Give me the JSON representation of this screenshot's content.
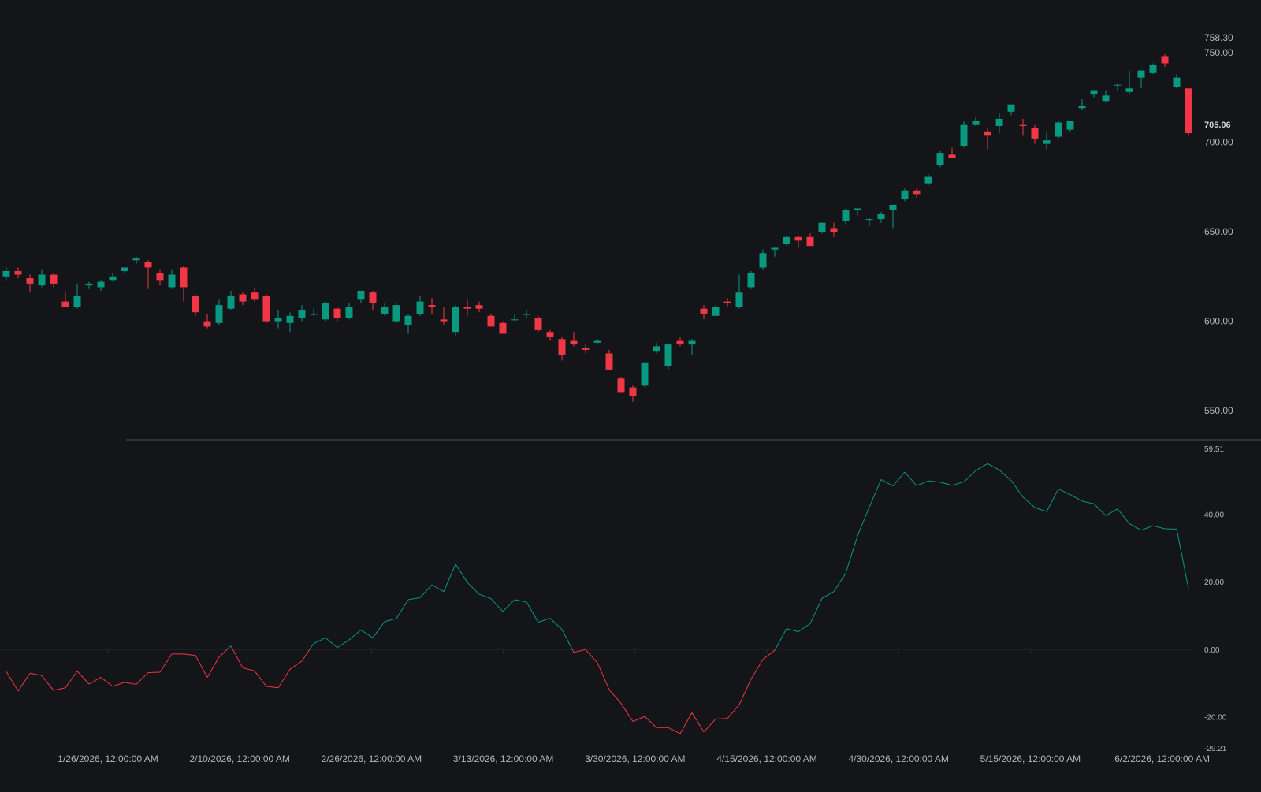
{
  "theme": {
    "background": "#131519",
    "up_color": "#089981",
    "down_color": "#f23645",
    "axis_text_color": "#b2b5be",
    "last_price_text_color": "#d1d4dc",
    "separator_color": "#3a3e48",
    "zero_line_color": "#2a2e39"
  },
  "chart_data": [
    {
      "type": "candlestick",
      "ylim": [
        539.5,
        758.3
      ],
      "y_ticks": [
        "550.00",
        "600.00",
        "650.00",
        "700.00",
        "750.00"
      ],
      "max_label": "758.30",
      "last_price_label": "705.06",
      "grid": false,
      "candles": [
        [
          625,
          630,
          623,
          628
        ],
        [
          628,
          630,
          624,
          626
        ],
        [
          624,
          626,
          616,
          621
        ],
        [
          620,
          629,
          619,
          626
        ],
        [
          626,
          627,
          619,
          621
        ],
        [
          611,
          616,
          608,
          608
        ],
        [
          608,
          621,
          607,
          614
        ],
        [
          620,
          622,
          618,
          621
        ],
        [
          619,
          623,
          617,
          622
        ],
        [
          623,
          627,
          622,
          625
        ],
        [
          628,
          630,
          627,
          630
        ],
        [
          634,
          636,
          632,
          635
        ],
        [
          633,
          634,
          618,
          630
        ],
        [
          627,
          629,
          620,
          623
        ],
        [
          619,
          629,
          618,
          626
        ],
        [
          630,
          631,
          611,
          619
        ],
        [
          614,
          615,
          603,
          605
        ],
        [
          600,
          604,
          596,
          597
        ],
        [
          599,
          612,
          598,
          609
        ],
        [
          607,
          617,
          606,
          614
        ],
        [
          615,
          616,
          609,
          611
        ],
        [
          616,
          619,
          611,
          612
        ],
        [
          614,
          615,
          599,
          600
        ],
        [
          600,
          606,
          596,
          602
        ],
        [
          599,
          605,
          594,
          603
        ],
        [
          602,
          609,
          600,
          606
        ],
        [
          604,
          607,
          603,
          604
        ],
        [
          601,
          611,
          600,
          610
        ],
        [
          607,
          608,
          600,
          602
        ],
        [
          602,
          610,
          601,
          608
        ],
        [
          612,
          617,
          610,
          617
        ],
        [
          616,
          617,
          606,
          610
        ],
        [
          604,
          610,
          603,
          608
        ],
        [
          600,
          610,
          599,
          609
        ],
        [
          598,
          604,
          593,
          603
        ],
        [
          604,
          614,
          603,
          611
        ],
        [
          609,
          613,
          604,
          608
        ],
        [
          601,
          608,
          598,
          600
        ],
        [
          594,
          609,
          592,
          608
        ],
        [
          608,
          612,
          603,
          607
        ],
        [
          609,
          611,
          605,
          607
        ],
        [
          603,
          604,
          597,
          597
        ],
        [
          599,
          600,
          593,
          593
        ],
        [
          601,
          604,
          600,
          601
        ],
        [
          604,
          606,
          602,
          604
        ],
        [
          602,
          603,
          594,
          595
        ],
        [
          594,
          595,
          589,
          591
        ],
        [
          590,
          591,
          578,
          581
        ],
        [
          589,
          594,
          586,
          587
        ],
        [
          585,
          587,
          582,
          584
        ],
        [
          588,
          590,
          587,
          589
        ],
        [
          582,
          584,
          573,
          573
        ],
        [
          568,
          569,
          560,
          560
        ],
        [
          563,
          564,
          555,
          558
        ],
        [
          564,
          577,
          563,
          577
        ],
        [
          583,
          588,
          582,
          586
        ],
        [
          575,
          587,
          573,
          587
        ],
        [
          589,
          591,
          586,
          587
        ],
        [
          587,
          590,
          581,
          589
        ],
        [
          607,
          609,
          601,
          604
        ],
        [
          603,
          609,
          603,
          608
        ],
        [
          611,
          613,
          608,
          610
        ],
        [
          608,
          626,
          607,
          616
        ],
        [
          619,
          628,
          618,
          627
        ],
        [
          630,
          640,
          629,
          638
        ],
        [
          640,
          641,
          636,
          641
        ],
        [
          643,
          648,
          642,
          647
        ],
        [
          647,
          648,
          641,
          645
        ],
        [
          647,
          649,
          642,
          642
        ],
        [
          650,
          655,
          649,
          655
        ],
        [
          652,
          655,
          647,
          650
        ],
        [
          656,
          663,
          654,
          662
        ],
        [
          662,
          663,
          659,
          663
        ],
        [
          657,
          658,
          653,
          657
        ],
        [
          657,
          661,
          655,
          660
        ],
        [
          662,
          665,
          652,
          665
        ],
        [
          668,
          674,
          667,
          673
        ],
        [
          673,
          674,
          669,
          671
        ],
        [
          677,
          682,
          676,
          681
        ],
        [
          687,
          695,
          686,
          694
        ],
        [
          693,
          697,
          691,
          691
        ],
        [
          698,
          712,
          697,
          710
        ],
        [
          710,
          714,
          709,
          712
        ],
        [
          706,
          708,
          696,
          704
        ],
        [
          709,
          716,
          705,
          713
        ],
        [
          717,
          721,
          715,
          721
        ],
        [
          710,
          713,
          704,
          709
        ],
        [
          708,
          710,
          699,
          702
        ],
        [
          699,
          706,
          696,
          701
        ],
        [
          703,
          712,
          702,
          711
        ],
        [
          707,
          712,
          706,
          712
        ],
        [
          719,
          724,
          718,
          720
        ],
        [
          727,
          728,
          725,
          729
        ],
        [
          723,
          729,
          722,
          726
        ],
        [
          732,
          733,
          729,
          732
        ],
        [
          728,
          740,
          727,
          730
        ],
        [
          736,
          738,
          730,
          740
        ],
        [
          739,
          744,
          738,
          743
        ],
        [
          748,
          749,
          742,
          744
        ],
        [
          731,
          738,
          730,
          736
        ],
        [
          730,
          730,
          704,
          705
        ]
      ]
    },
    {
      "type": "line",
      "ylim": [
        -29.21,
        59.51
      ],
      "y_ticks": [
        "-20.00",
        "0.00",
        "20.00",
        "40.00"
      ],
      "max_label": "59.51",
      "min_label": "-29.21",
      "zero_line": true,
      "x_labels": [
        "1/26/2026, 12:00:00 AM",
        "2/10/2026, 12:00:00 AM",
        "2/26/2026, 12:00:00 AM",
        "3/13/2026, 12:00:00 AM",
        "3/30/2026, 12:00:00 AM",
        "4/15/2026, 12:00:00 AM",
        "4/30/2026, 12:00:00 AM",
        "5/15/2026, 12:00:00 AM",
        "6/2/2026, 12:00:00 AM"
      ],
      "values": [
        -6.6,
        -12.4,
        -7.1,
        -7.8,
        -12.2,
        -11.4,
        -6.5,
        -10.3,
        -8.3,
        -11.0,
        -9.8,
        -10.4,
        -6.9,
        -6.8,
        -1.4,
        -1.4,
        -1.8,
        -8.3,
        -2.3,
        1.0,
        -5.5,
        -6.4,
        -11.0,
        -11.4,
        -5.9,
        -3.5,
        1.7,
        3.4,
        0.5,
        2.8,
        5.7,
        3.4,
        8.2,
        9.1,
        14.7,
        15.3,
        19.1,
        17.1,
        25.2,
        19.8,
        16.3,
        15.0,
        11.2,
        14.7,
        14.0,
        8.0,
        9.2,
        5.9,
        -0.9,
        -0.1,
        -4.0,
        -12.0,
        -16.0,
        -21.4,
        -19.9,
        -23.2,
        -23.2,
        -25.0,
        -18.8,
        -24.5,
        -20.7,
        -20.5,
        -16.4,
        -8.8,
        -3.0,
        -0.3,
        6.1,
        5.2,
        7.6,
        15.1,
        17.1,
        22.5,
        33.6,
        42.1,
        50.3,
        48.4,
        52.5,
        48.5,
        49.9,
        49.5,
        48.6,
        49.6,
        52.9,
        55.0,
        53.1,
        50.0,
        45.1,
        42.0,
        40.8,
        47.5,
        45.8,
        43.9,
        43.1,
        39.6,
        41.6,
        37.2,
        35.3,
        36.6,
        35.7,
        35.6,
        18.0
      ]
    }
  ]
}
